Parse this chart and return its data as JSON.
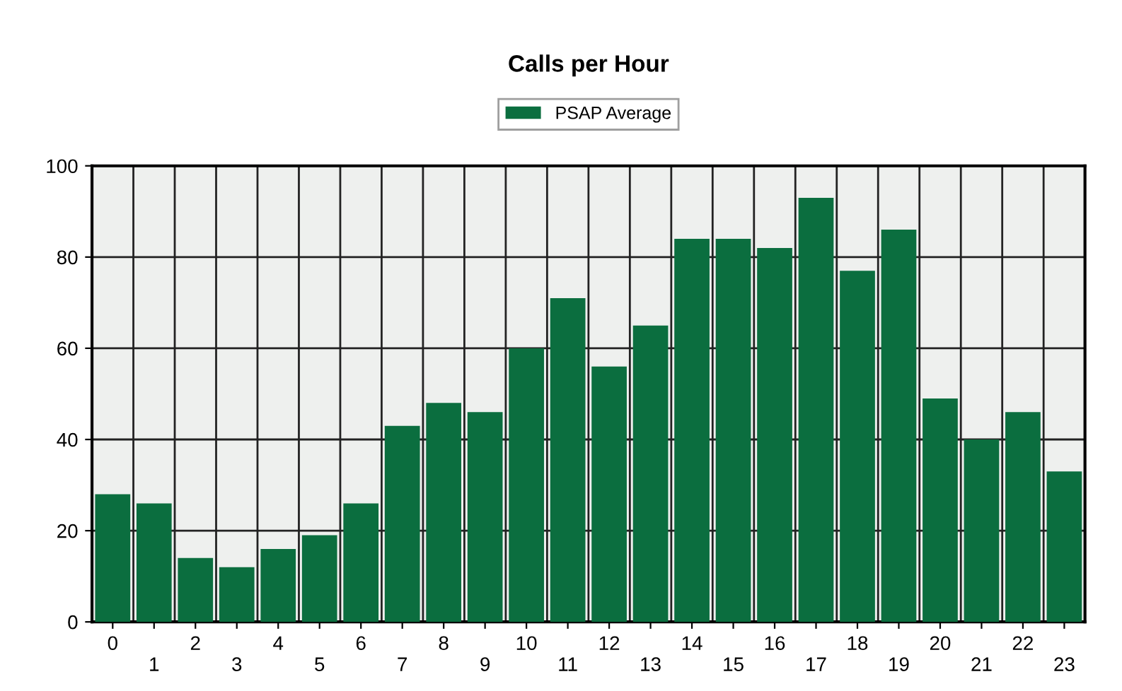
{
  "chart_data": {
    "type": "bar",
    "title": "Calls per Hour",
    "categories": [
      "0",
      "1",
      "2",
      "3",
      "4",
      "5",
      "6",
      "7",
      "8",
      "9",
      "10",
      "11",
      "12",
      "13",
      "14",
      "15",
      "16",
      "17",
      "18",
      "19",
      "20",
      "21",
      "22",
      "23"
    ],
    "series": [
      {
        "name": "PSAP Average",
        "color": "#0b6e3f",
        "values": [
          28,
          26,
          14,
          12,
          16,
          19,
          26,
          43,
          48,
          46,
          60,
          71,
          56,
          65,
          84,
          84,
          82,
          93,
          77,
          86,
          49,
          40,
          46,
          33
        ]
      }
    ],
    "ylim": [
      0,
      100
    ],
    "yticks": [
      0,
      20,
      40,
      60,
      80,
      100
    ],
    "grid": "y",
    "legend": "top"
  }
}
